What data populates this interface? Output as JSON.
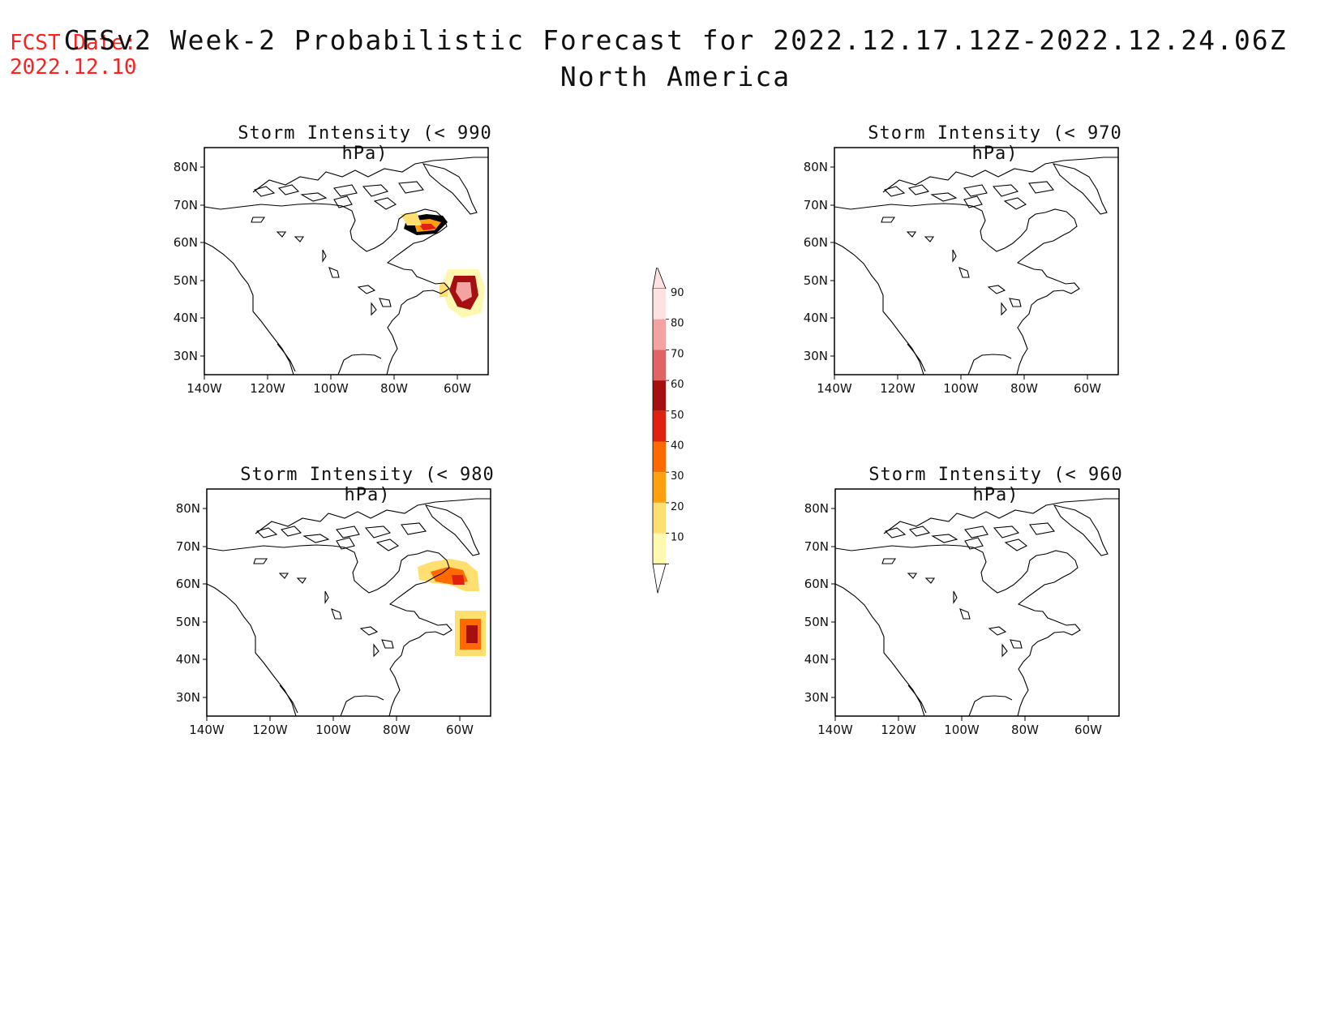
{
  "header": {
    "fcst_label": "FCST Date:",
    "fcst_date": "2022.12.10",
    "title": "CFSv2 Week-2 Probabilistic Forecast for 2022.12.17.12Z-2022.12.24.06Z",
    "region": "North America"
  },
  "axes": {
    "lat_labels": [
      "80N",
      "70N",
      "60N",
      "50N",
      "40N",
      "30N"
    ],
    "lon_labels": [
      "140W",
      "120W",
      "100W",
      "80W",
      "60W"
    ]
  },
  "panels": [
    {
      "id": "p990",
      "title": "Storm Intensity (< 990 hPa)"
    },
    {
      "id": "p970",
      "title": "Storm Intensity (< 970 hPa)"
    },
    {
      "id": "p980",
      "title": "Storm Intensity (< 980 hPa)"
    },
    {
      "id": "p960",
      "title": "Storm Intensity (< 960 hPa)"
    }
  ],
  "colorbar": {
    "labels": [
      "90",
      "80",
      "70",
      "60",
      "50",
      "40",
      "30",
      "20",
      "10"
    ],
    "colors": [
      "#fde2e2",
      "#f4a3a3",
      "#e06464",
      "#a50f0f",
      "#e02010",
      "#ff6a00",
      "#ffa010",
      "#ffdf70",
      "#fff8b0"
    ]
  }
}
